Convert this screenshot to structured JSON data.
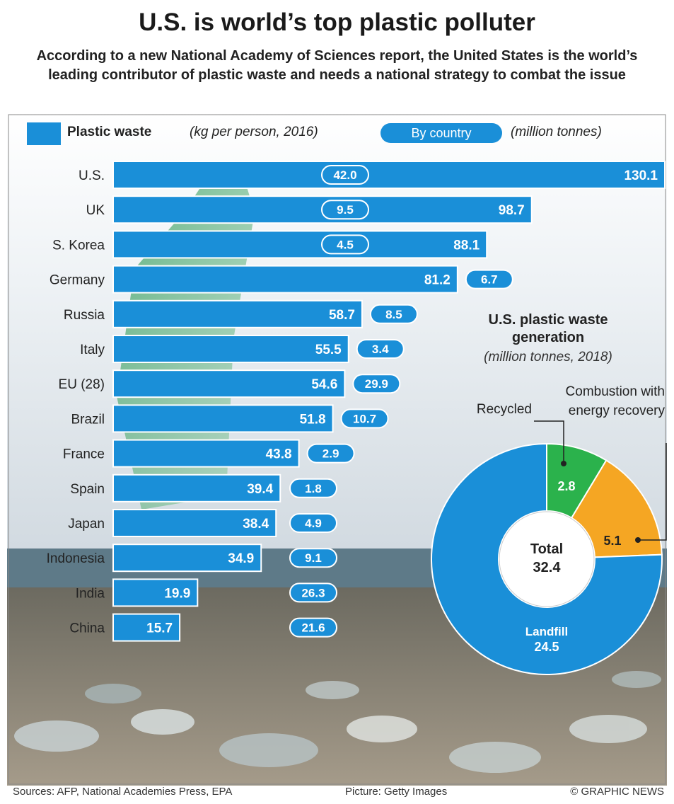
{
  "title": "U.S. is world’s top plastic polluter",
  "subtitle": "According to a new National Academy of Sciences report, the United States is the world’s leading contributor of plastic waste and needs a national strategy to combat the issue",
  "chart_data": [
    {
      "type": "bar",
      "orientation": "horizontal",
      "categories": [
        "U.S.",
        "UK",
        "S. Korea",
        "Germany",
        "Russia",
        "Italy",
        "EU (28)",
        "Brazil",
        "France",
        "Spain",
        "Japan",
        "Indonesia",
        "India",
        "China"
      ],
      "series": [
        {
          "name": "Plastic waste",
          "unit": "(kg per person, 2016)",
          "color": "#1a8fd8",
          "values": [
            130.1,
            98.7,
            88.1,
            81.2,
            58.7,
            55.5,
            54.6,
            51.8,
            43.8,
            39.4,
            38.4,
            34.9,
            19.9,
            15.7
          ]
        },
        {
          "name": "By country",
          "unit": "(million tonnes)",
          "color": "#1a8fd8",
          "values": [
            42.0,
            9.5,
            4.5,
            6.7,
            8.5,
            3.4,
            29.9,
            10.7,
            2.9,
            1.8,
            4.9,
            9.1,
            26.3,
            21.6
          ],
          "value_labels": [
            "42.0",
            "9.5",
            "4.5",
            "6.7",
            "8.5",
            "3.4",
            "29.9",
            "10.7",
            "2.9",
            "1.8",
            "4.9",
            "9.1",
            "26.3",
            "21.6"
          ]
        }
      ]
    },
    {
      "type": "donut",
      "title": "U.S. plastic waste generation",
      "subtitle": "(million tonnes, 2018)",
      "categories": [
        "Recycled",
        "Combustion with energy recovery",
        "Landfill"
      ],
      "values": [
        2.8,
        5.1,
        24.5
      ],
      "colors": [
        "#2bb24c",
        "#f5a623",
        "#1a8fd8"
      ],
      "total_label": "Total",
      "total": 32.4
    }
  ],
  "footer": {
    "sources": "Sources: AFP, National Academies Press, EPA",
    "picture": "Picture: Getty Images",
    "credit": "© GRAPHIC NEWS"
  }
}
